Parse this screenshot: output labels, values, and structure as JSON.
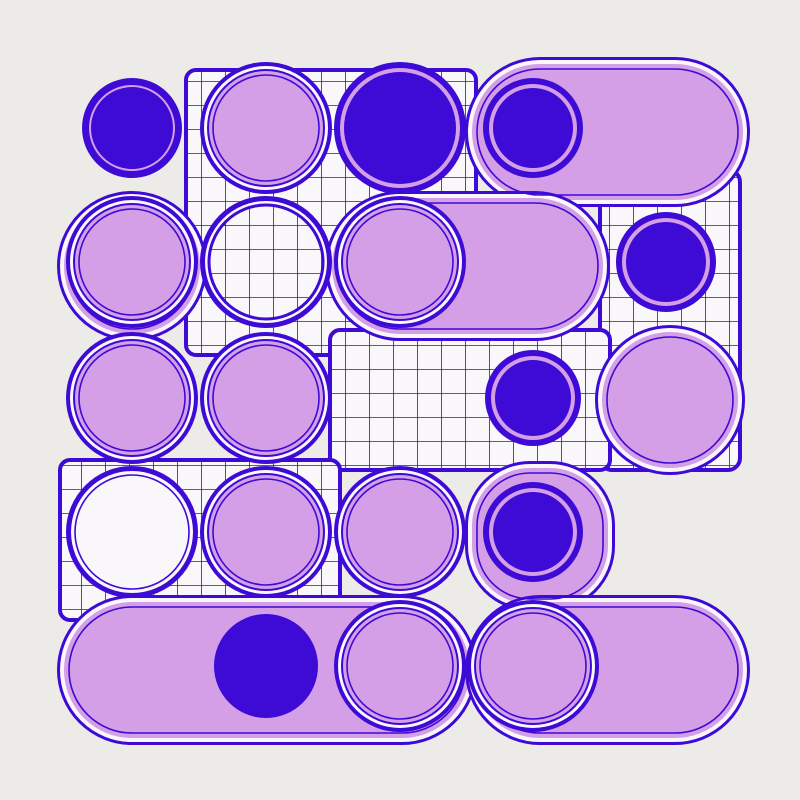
{
  "artwork": {
    "kind": "generative-tile-pattern",
    "palette": {
      "background": "#ecebe7",
      "ink": "#3d0ad6",
      "fill": "#d49fe6",
      "paper": "#f9f7fa"
    }
  }
}
